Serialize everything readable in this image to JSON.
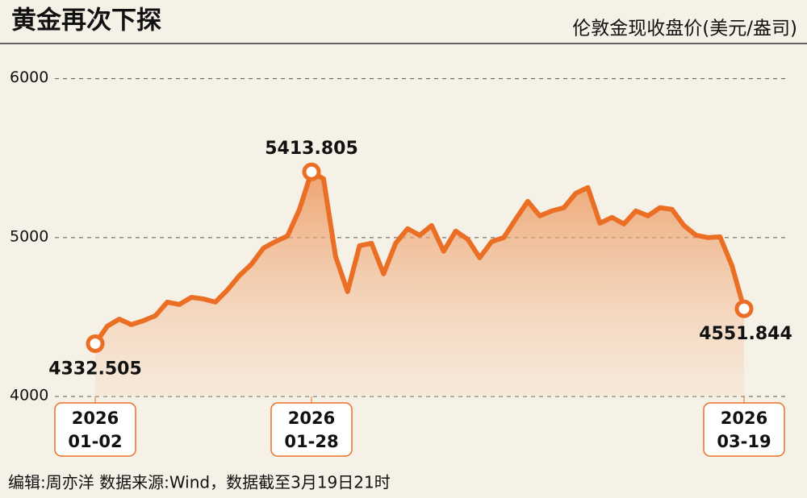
{
  "chart_data": {
    "type": "line",
    "title": "黄金再次下探",
    "subtitle": "伦敦金现收盘价(美元/盎司)",
    "footer": "编辑:周亦洋  数据来源:Wind，数据截至3月19日21时",
    "categories": [
      [
        "2026",
        "01-02"
      ],
      null,
      null,
      null,
      null,
      null,
      null,
      null,
      null,
      null,
      null,
      null,
      null,
      null,
      null,
      null,
      null,
      null,
      [
        "2026",
        "01-28"
      ],
      null,
      null,
      null,
      null,
      null,
      null,
      null,
      null,
      null,
      null,
      null,
      null,
      null,
      null,
      null,
      null,
      null,
      null,
      null,
      null,
      null,
      null,
      null,
      null,
      null,
      null,
      null,
      null,
      null,
      null,
      null,
      null,
      null,
      null,
      null,
      [
        "2026",
        "03-19"
      ]
    ],
    "series": [
      {
        "name": "伦敦金现",
        "color": "#ea6f25",
        "values": [
          4332.505,
          4442,
          4487,
          4452,
          4477,
          4508,
          4594,
          4579,
          4624,
          4614,
          4594,
          4670,
          4761,
          4832,
          4934,
          4975,
          5010,
          5178,
          5413.805,
          5370,
          4883,
          4660,
          4949,
          4964,
          4772,
          4964,
          5056,
          5015,
          5076,
          4914,
          5041,
          4990,
          4873,
          4975,
          5000,
          5117,
          5228,
          5137,
          5168,
          5188,
          5279,
          5315,
          5091,
          5127,
          5086,
          5168,
          5137,
          5188,
          5178,
          5076,
          5015,
          5000,
          5005,
          4822,
          4551.844
        ]
      }
    ],
    "ylim": [
      3990,
      6120
    ],
    "yticks": [
      4000,
      5000,
      6000
    ],
    "grid": true
  }
}
